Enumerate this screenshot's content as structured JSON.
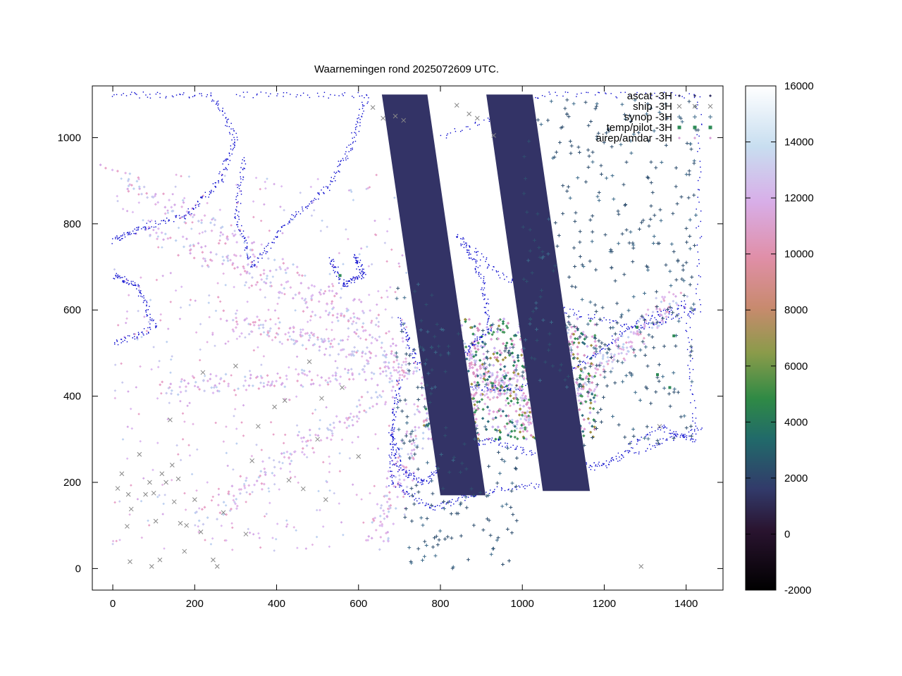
{
  "chart_data": {
    "type": "scatter",
    "title": "Waarnemingen rond 2025072609 UTC.",
    "xlabel": "",
    "ylabel": "",
    "xlim": [
      -50,
      1490
    ],
    "ylim": [
      -50,
      1120
    ],
    "xticks": [
      0,
      200,
      400,
      600,
      800,
      1000,
      1200,
      1400
    ],
    "yticks": [
      0,
      200,
      400,
      600,
      800,
      1000
    ],
    "x_tick_labels": [
      "0",
      "200",
      "400",
      "600",
      "800",
      "1000",
      "1200",
      "1400"
    ],
    "y_tick_labels": [
      "0",
      "200",
      "400",
      "600",
      "800",
      "1000"
    ],
    "grid": false,
    "legend_position": "top-right",
    "colorbar": {
      "range": [
        -2000,
        16000
      ],
      "ticks": [
        -2000,
        0,
        2000,
        4000,
        6000,
        8000,
        10000,
        12000,
        14000,
        16000
      ],
      "tick_labels": [
        "-2000",
        "0",
        "2000",
        "4000",
        "6000",
        "8000",
        "10000",
        "12000",
        "14000",
        "16000"
      ],
      "colormap": "cubehelix"
    },
    "coastline_color": "#0000cc",
    "series": [
      {
        "name": "ascat -3H",
        "marker": "diamond",
        "color": "#333366",
        "swaths": [
          {
            "polygon": [
              [
                657,
                1100
              ],
              [
                768,
                1100
              ],
              [
                910,
                170
              ],
              [
                800,
                170
              ]
            ]
          },
          {
            "polygon": [
              [
                912,
                1100
              ],
              [
                1025,
                1100
              ],
              [
                1165,
                180
              ],
              [
                1050,
                180
              ]
            ]
          }
        ]
      },
      {
        "name": "ship -3H",
        "marker": "cross",
        "color": "#888888",
        "points": [
          [
            12,
            186
          ],
          [
            22,
            220
          ],
          [
            35,
            98
          ],
          [
            38,
            172
          ],
          [
            45,
            138
          ],
          [
            42,
            16
          ],
          [
            65,
            265
          ],
          [
            80,
            172
          ],
          [
            90,
            200
          ],
          [
            100,
            175
          ],
          [
            95,
            5
          ],
          [
            105,
            110
          ],
          [
            115,
            20
          ],
          [
            120,
            220
          ],
          [
            130,
            200
          ],
          [
            140,
            345
          ],
          [
            145,
            240
          ],
          [
            150,
            155
          ],
          [
            160,
            208
          ],
          [
            165,
            105
          ],
          [
            175,
            40
          ],
          [
            180,
            100
          ],
          [
            200,
            160
          ],
          [
            215,
            85
          ],
          [
            220,
            455
          ],
          [
            245,
            20
          ],
          [
            255,
            5
          ],
          [
            270,
            130
          ],
          [
            300,
            470
          ],
          [
            325,
            80
          ],
          [
            340,
            250
          ],
          [
            355,
            330
          ],
          [
            395,
            375
          ],
          [
            420,
            390
          ],
          [
            430,
            205
          ],
          [
            465,
            185
          ],
          [
            480,
            480
          ],
          [
            500,
            300
          ],
          [
            510,
            395
          ],
          [
            520,
            160
          ],
          [
            560,
            420
          ],
          [
            600,
            260
          ],
          [
            635,
            1070
          ],
          [
            660,
            1045
          ],
          [
            690,
            1050
          ],
          [
            710,
            1040
          ],
          [
            840,
            1075
          ],
          [
            870,
            1055
          ],
          [
            890,
            1045
          ],
          [
            930,
            1005
          ],
          [
            1290,
            5
          ],
          [
            1335,
            330
          ]
        ]
      },
      {
        "name": "synop -3H",
        "marker": "plus",
        "color": "#3c6a8a",
        "regions": [
          {
            "bounds": [
              1000,
              1430,
              560,
              1090
            ]
          },
          {
            "bounds": [
              750,
              1230,
              420,
              570
            ]
          },
          {
            "bounds": [
              700,
              1000,
              0,
              330
            ]
          },
          {
            "bounds": [
              680,
              780,
              280,
              660
            ]
          },
          {
            "bounds": [
              1150,
              1420,
              280,
              560
            ]
          }
        ]
      },
      {
        "name": "temp/pilot -3H",
        "marker": "square",
        "color": "#2e8b57",
        "points": [
          [
            555,
            680
          ],
          [
            1360,
            420
          ],
          [
            1370,
            540
          ],
          [
            1280,
            560
          ],
          [
            1330,
            450
          ]
        ]
      },
      {
        "name": "airep/amdar -3H",
        "marker": "diamond",
        "color": "#d8a0d8",
        "tracks": [
          {
            "from": [
              0,
              920
            ],
            "to": [
              640,
              570
            ]
          },
          {
            "from": [
              100,
              780
            ],
            "to": [
              700,
              520
            ]
          },
          {
            "from": [
              280,
              580
            ],
            "to": [
              720,
              470
            ]
          },
          {
            "from": [
              120,
              420
            ],
            "to": [
              760,
              460
            ]
          },
          {
            "from": [
              220,
              120
            ],
            "to": [
              720,
              450
            ]
          },
          {
            "from": [
              640,
              60
            ],
            "to": [
              800,
              460
            ]
          },
          {
            "from": [
              880,
              380
            ],
            "to": [
              1120,
              540
            ]
          },
          {
            "from": [
              980,
              330
            ],
            "to": [
              1160,
              420
            ]
          },
          {
            "from": [
              1170,
              450
            ],
            "to": [
              1380,
              630
            ]
          },
          {
            "from": [
              780,
              560
            ],
            "to": [
              1000,
              380
            ]
          }
        ]
      }
    ]
  }
}
